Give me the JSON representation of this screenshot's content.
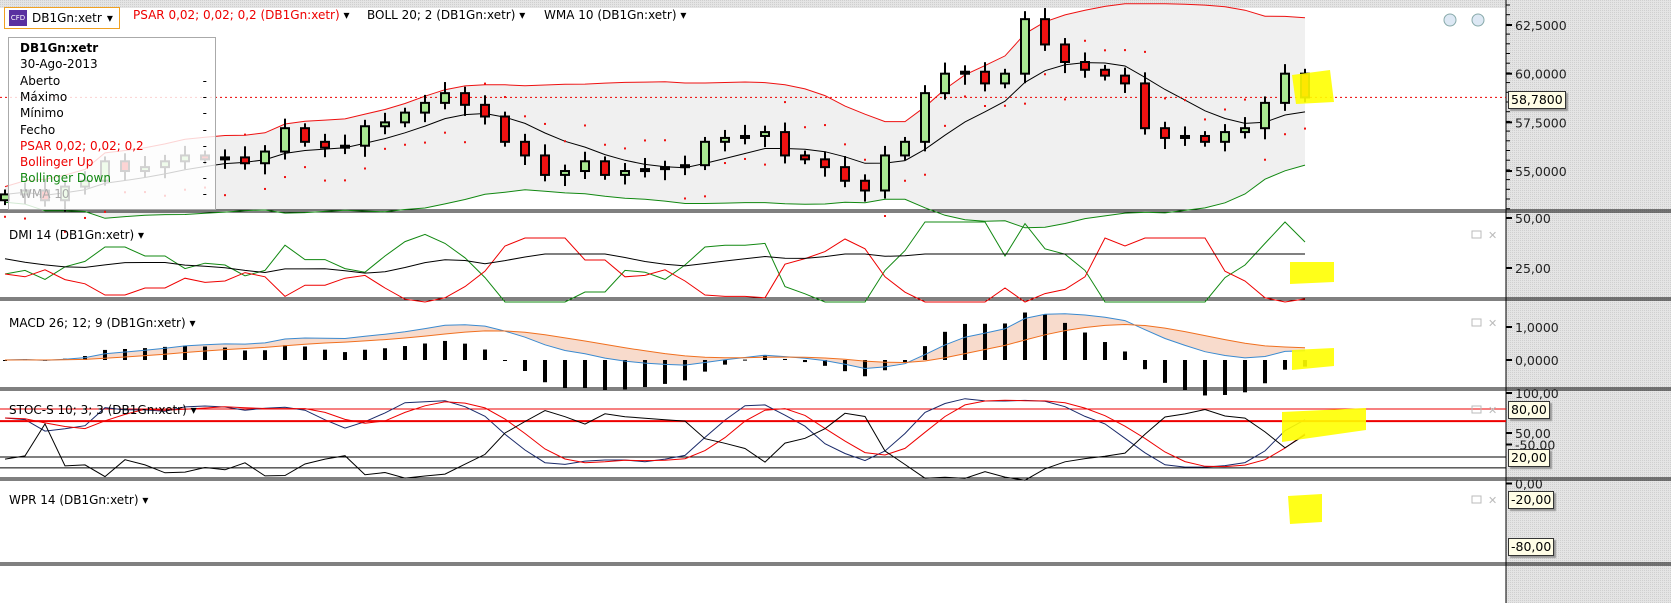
{
  "header": {
    "symbol": "DB1Gn:xetr",
    "cfd_icon": "CFD",
    "psar": "PSAR 0,02; 0,02; 0,2 (DB1Gn:xetr)",
    "boll": "BOLL 20; 2 (DB1Gn:xetr)",
    "wma": "WMA 10 (DB1Gn:xetr)"
  },
  "legend": {
    "title": "DB1Gn:xetr",
    "date": "30-Ago-2013",
    "rows": [
      {
        "label": "Aberto",
        "value": "-"
      },
      {
        "label": "Máximo",
        "value": "-"
      },
      {
        "label": "Mínimo",
        "value": "-"
      },
      {
        "label": "Fecho",
        "value": "-"
      },
      {
        "label": "PSAR 0,02; 0,02; 0,2",
        "value": "-"
      },
      {
        "label": "Bollinger Up",
        "value": "-"
      },
      {
        "label": "Bollinger Down",
        "value": "-"
      },
      {
        "label": "WMA 10",
        "value": "-"
      }
    ]
  },
  "panels": {
    "dmi": "DMI 14 (DB1Gn:xetr)",
    "macd": "MACD 26; 12; 9 (DB1Gn:xetr)",
    "stoc": "STOC-S 10; 3; 3 (DB1Gn:xetr)",
    "wpr": "WPR 14 (DB1Gn:xetr)"
  },
  "axes": {
    "main": [
      "62,5000",
      "60,0000",
      "57,5000",
      "55,0000"
    ],
    "dmi": [
      "50,00",
      "25,00"
    ],
    "macd": [
      "1,0000",
      "0,0000"
    ],
    "stoc": [
      "100,00",
      "50,00"
    ],
    "wpr": [
      "0,00",
      "-50,00"
    ]
  },
  "tags": {
    "last": "58,7800",
    "stoc_hi": "80,00",
    "stoc_lo": "20,00",
    "wpr_hi": "-20,00",
    "wpr_lo": "-80,00"
  },
  "colors": {
    "up": "#a8e890",
    "down": "#ee1111",
    "boll_up": "#ee1111",
    "boll_down": "#118811",
    "psar": "#ee1111",
    "highlight": "#ffff00"
  },
  "chart_data": {
    "type": "candlestick",
    "last_price": 58.78,
    "ylim": [
      53,
      63.5
    ],
    "closes": [
      53.8,
      54,
      53.5,
      54.2,
      54.5,
      55.5,
      55,
      55.2,
      55.5,
      55.8,
      55.6,
      55.7,
      55.4,
      56,
      57.2,
      56.5,
      56.2,
      56.3,
      57.3,
      57.5,
      58,
      58.5,
      59,
      58.4,
      57.8,
      56.5,
      55.8,
      54.8,
      55,
      55.5,
      54.8,
      55,
      55.1,
      55.2,
      55.3,
      56.5,
      56.7,
      56.8,
      57,
      55.8,
      55.6,
      55.2,
      54.5,
      54,
      55.8,
      56.5,
      59,
      60,
      60.1,
      59.5,
      60,
      62.8,
      61.5,
      60.6,
      60.2,
      59.9,
      59.5,
      57.2,
      56.7,
      56.8,
      56.5,
      57,
      57.2,
      58.5,
      60,
      58.78
    ],
    "indicators": {
      "boll": [
        20,
        2
      ],
      "wma": 10,
      "psar": [
        0.02,
        0.02,
        0.2
      ],
      "dmi": 14,
      "macd": [
        26,
        12,
        9
      ],
      "stoch": [
        10,
        3,
        3
      ],
      "wpr": 14
    },
    "levels": {
      "stoch": [
        80,
        20
      ],
      "wpr": [
        -20,
        -80
      ]
    }
  }
}
